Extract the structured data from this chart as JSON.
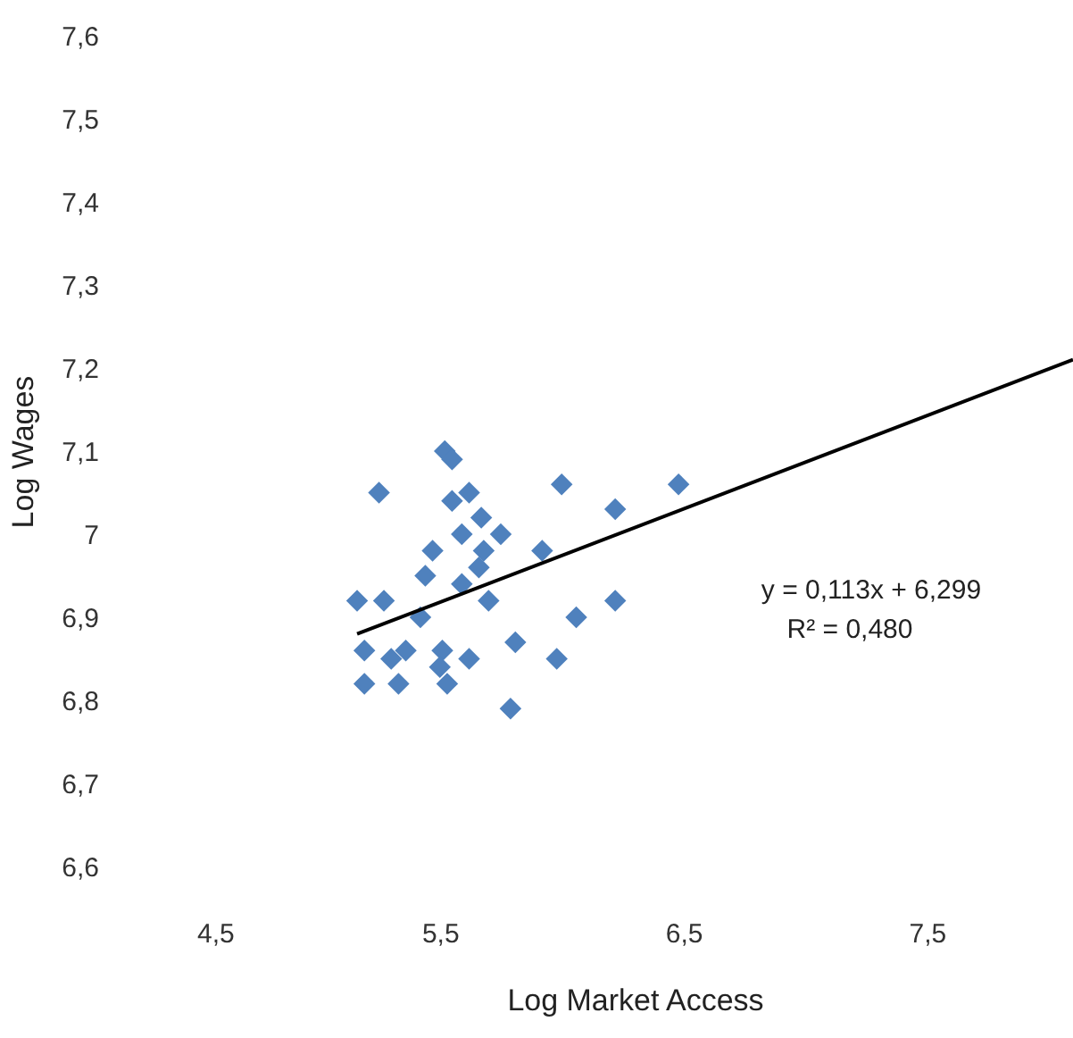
{
  "chart_data": {
    "type": "scatter",
    "xlabel": "Log Market Access",
    "ylabel": "Log Wages",
    "xlim": [
      4.5,
      8.1
    ],
    "ylim": [
      6.6,
      7.6
    ],
    "xticks": [
      {
        "value": 4.5,
        "label": "4,5"
      },
      {
        "value": 5.5,
        "label": "5,5"
      },
      {
        "value": 6.5,
        "label": "6,5"
      },
      {
        "value": 7.5,
        "label": "7,5"
      }
    ],
    "yticks": [
      {
        "value": 6.6,
        "label": "6,6"
      },
      {
        "value": 6.7,
        "label": "6,7"
      },
      {
        "value": 6.8,
        "label": "6,8"
      },
      {
        "value": 6.9,
        "label": "6,9"
      },
      {
        "value": 7,
        "label": "7"
      },
      {
        "value": 7.1,
        "label": "7,1"
      },
      {
        "value": 7.2,
        "label": "7,2"
      },
      {
        "value": 7.3,
        "label": "7,3"
      },
      {
        "value": 7.4,
        "label": "7,4"
      },
      {
        "value": 7.5,
        "label": "7,5"
      },
      {
        "value": 7.6,
        "label": "7,6"
      }
    ],
    "grid": false,
    "marker": "diamond",
    "series": [
      {
        "color": "#4f81bd",
        "x": [
          5.52,
          5.55,
          5.25,
          6.0,
          6.48,
          5.55,
          5.62,
          6.22,
          5.67,
          5.59,
          5.75,
          5.92,
          5.47,
          5.68,
          5.66,
          5.44,
          5.59,
          5.16,
          5.27,
          5.7,
          5.42,
          6.06,
          6.22,
          5.19,
          5.3,
          5.36,
          5.51,
          5.62,
          5.81,
          5.98,
          5.5,
          5.53,
          5.19,
          5.33,
          5.79
        ],
        "values": [
          7.1,
          7.09,
          7.05,
          7.06,
          7.06,
          7.04,
          7.05,
          7.03,
          7.02,
          7.0,
          7.0,
          6.98,
          6.98,
          6.98,
          6.96,
          6.95,
          6.94,
          6.92,
          6.92,
          6.92,
          6.9,
          6.9,
          6.92,
          6.86,
          6.85,
          6.86,
          6.86,
          6.85,
          6.87,
          6.85,
          6.84,
          6.82,
          6.82,
          6.82,
          6.79
        ]
      },
      {
        "type": "line",
        "color": "#000000",
        "marker": "none",
        "line_style": "solid",
        "x": [
          5.16,
          8.1
        ],
        "values": [
          6.88,
          7.21
        ]
      }
    ],
    "annotations": [
      "y = 0,113x + 6,299",
      "R² = 0,480"
    ]
  }
}
